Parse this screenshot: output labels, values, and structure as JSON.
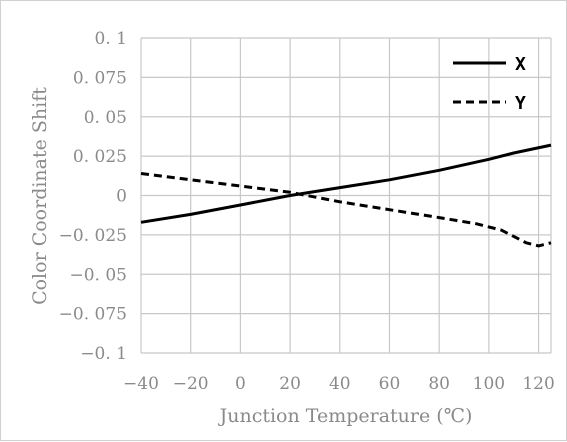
{
  "chart_data": {
    "type": "line",
    "xlabel": "Junction Temperature (℃)",
    "ylabel": "Color Coordinate Shift",
    "xlim": [
      -40,
      125
    ],
    "ylim": [
      -0.1,
      0.1
    ],
    "x_ticks": [
      -40,
      -20,
      0,
      20,
      40,
      60,
      80,
      100,
      120
    ],
    "x_tick_labels": [
      "−40",
      "−20",
      "0",
      "20",
      "40",
      "60",
      "80",
      "100",
      "120"
    ],
    "y_ticks": [
      0.1,
      0.075,
      0.05,
      0.025,
      0,
      -0.025,
      -0.05,
      -0.075,
      -0.1
    ],
    "y_tick_labels": [
      "0. 1",
      "0. 075",
      "0. 05",
      "0. 025",
      "0",
      "−0. 025",
      "−0. 05",
      "−0. 075",
      "−0. 1"
    ],
    "grid": true,
    "legend_position": "top-right",
    "series": [
      {
        "name": "X",
        "style": "solid",
        "color": "#000000",
        "points": [
          [
            -40,
            -0.017
          ],
          [
            -20,
            -0.012
          ],
          [
            0,
            -0.006
          ],
          [
            20,
            0.0
          ],
          [
            40,
            0.005
          ],
          [
            60,
            0.01
          ],
          [
            80,
            0.016
          ],
          [
            100,
            0.023
          ],
          [
            110,
            0.027
          ],
          [
            125,
            0.032
          ]
        ]
      },
      {
        "name": "Y",
        "style": "dashed",
        "color": "#000000",
        "points": [
          [
            -40,
            0.014
          ],
          [
            -20,
            0.01
          ],
          [
            0,
            0.006
          ],
          [
            20,
            0.002
          ],
          [
            40,
            -0.004
          ],
          [
            60,
            -0.009
          ],
          [
            80,
            -0.014
          ],
          [
            95,
            -0.018
          ],
          [
            105,
            -0.022
          ],
          [
            115,
            -0.03
          ],
          [
            120,
            -0.032
          ],
          [
            125,
            -0.03
          ]
        ]
      }
    ]
  }
}
